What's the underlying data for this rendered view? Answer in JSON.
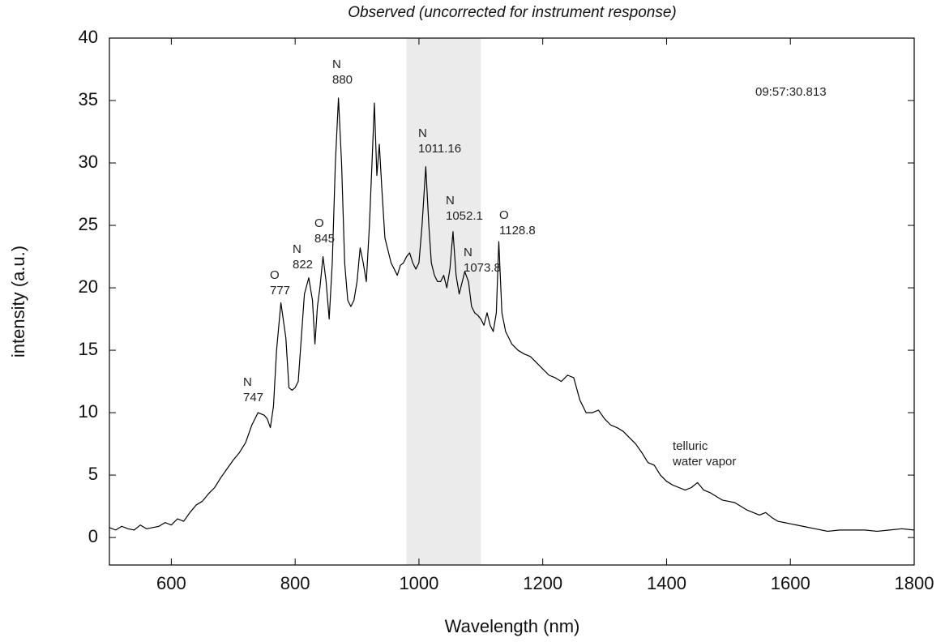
{
  "chart_data": {
    "type": "line",
    "title": "Observed  (uncorrected for instrument response)",
    "x_label": "Wavelength (nm)",
    "y_label": "intensity (a.u.)",
    "color": "#000000",
    "highlight_x": [
      980,
      1100
    ],
    "highlight_color": "#ebebeb",
    "xlim": [
      500,
      1800
    ],
    "ylim": [
      -2.2,
      40
    ],
    "xticks": [
      600,
      800,
      1000,
      1200,
      1400,
      1600,
      1800
    ],
    "yticks": [
      0,
      5,
      10,
      15,
      20,
      25,
      30,
      35,
      40
    ],
    "annotations": [
      {
        "lines": [
          "N",
          "747"
        ]
      },
      {
        "lines": [
          "O",
          "777"
        ]
      },
      {
        "lines": [
          "N",
          "822"
        ]
      },
      {
        "lines": [
          "O",
          "845"
        ]
      },
      {
        "lines": [
          "N",
          "880"
        ]
      },
      {
        "lines": [
          "N",
          "1011.16"
        ]
      },
      {
        "lines": [
          "N",
          "1052.1"
        ]
      },
      {
        "lines": [
          "O",
          "1128.8"
        ]
      },
      {
        "lines": [
          "N",
          "1073.8"
        ]
      },
      {
        "lines": [
          "telluric",
          "water vapor"
        ]
      },
      {
        "lines": [
          "09:57:30.813"
        ]
      }
    ],
    "x": [
      500,
      510,
      520,
      530,
      540,
      550,
      560,
      570,
      580,
      590,
      600,
      610,
      620,
      630,
      640,
      650,
      660,
      670,
      680,
      690,
      700,
      710,
      720,
      730,
      740,
      750,
      755,
      760,
      765,
      770,
      777,
      785,
      790,
      795,
      800,
      805,
      810,
      815,
      822,
      828,
      832,
      836,
      840,
      845,
      850,
      855,
      860,
      865,
      870,
      875,
      880,
      885,
      890,
      895,
      900,
      905,
      910,
      915,
      920,
      925,
      928,
      932,
      936,
      940,
      945,
      950,
      955,
      960,
      965,
      970,
      975,
      980,
      985,
      990,
      995,
      1000,
      1005,
      1011,
      1016,
      1020,
      1025,
      1030,
      1035,
      1040,
      1045,
      1050,
      1055,
      1060,
      1065,
      1070,
      1074,
      1080,
      1085,
      1090,
      1095,
      1100,
      1105,
      1110,
      1115,
      1120,
      1125,
      1129,
      1134,
      1140,
      1150,
      1160,
      1170,
      1180,
      1190,
      1200,
      1210,
      1220,
      1230,
      1240,
      1250,
      1260,
      1270,
      1280,
      1290,
      1300,
      1310,
      1320,
      1330,
      1340,
      1350,
      1360,
      1370,
      1380,
      1390,
      1400,
      1410,
      1420,
      1430,
      1440,
      1450,
      1460,
      1470,
      1480,
      1490,
      1500,
      1510,
      1520,
      1530,
      1540,
      1550,
      1560,
      1570,
      1580,
      1590,
      1600,
      1620,
      1640,
      1660,
      1680,
      1700,
      1720,
      1740,
      1760,
      1780,
      1800
    ],
    "values": [
      0.8,
      0.6,
      0.9,
      0.7,
      0.6,
      1.0,
      0.7,
      0.8,
      0.9,
      1.2,
      1.0,
      1.5,
      1.3,
      2.0,
      2.6,
      2.9,
      3.5,
      4.0,
      4.8,
      5.5,
      6.2,
      6.8,
      7.6,
      9.0,
      10.0,
      9.8,
      9.5,
      8.8,
      10.5,
      15.0,
      18.8,
      16.0,
      12.0,
      11.8,
      12.0,
      12.5,
      16.0,
      19.5,
      20.8,
      19.0,
      15.5,
      18.5,
      20.0,
      22.5,
      20.5,
      17.5,
      22.0,
      30.0,
      35.2,
      30.0,
      22.0,
      19.0,
      18.5,
      19.0,
      20.5,
      23.2,
      22.0,
      20.5,
      25.0,
      31.0,
      34.8,
      29.0,
      31.5,
      28.0,
      24.0,
      23.0,
      22.0,
      21.5,
      21.0,
      21.8,
      22.0,
      22.5,
      22.8,
      22.0,
      21.5,
      22.0,
      25.0,
      29.7,
      25.0,
      22.0,
      21.0,
      20.5,
      20.5,
      21.0,
      20.0,
      21.5,
      24.5,
      21.0,
      19.5,
      20.5,
      21.3,
      20.5,
      18.5,
      18.0,
      17.8,
      17.5,
      17.0,
      18.0,
      17.0,
      16.5,
      18.0,
      23.7,
      18.0,
      16.5,
      15.5,
      15.0,
      14.7,
      14.5,
      14.0,
      13.5,
      13.0,
      12.8,
      12.5,
      13.0,
      12.8,
      11.0,
      10.0,
      10.0,
      10.2,
      9.5,
      9.0,
      8.8,
      8.5,
      8.0,
      7.5,
      6.8,
      6.0,
      5.8,
      5.0,
      4.5,
      4.2,
      4.0,
      3.8,
      4.0,
      4.4,
      3.8,
      3.6,
      3.3,
      3.0,
      2.9,
      2.8,
      2.5,
      2.2,
      2.0,
      1.8,
      2.0,
      1.6,
      1.3,
      1.2,
      1.1,
      0.9,
      0.7,
      0.5,
      0.6,
      0.6,
      0.6,
      0.5,
      0.6,
      0.7,
      0.6
    ]
  }
}
